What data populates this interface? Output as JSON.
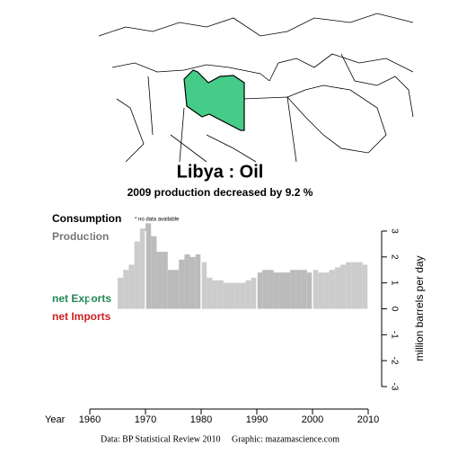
{
  "chart_data": {
    "type": "bar",
    "title": "Libya :  Oil",
    "subtitle": "2009 production decreased by 9.2 %",
    "annotation": "* no data available",
    "xlabel": "Year",
    "ylabel": "million barrels per day",
    "source": "Data: BP Statistical Review 2010     Graphic: mazamascience.com",
    "x": [
      1965,
      1966,
      1967,
      1968,
      1969,
      1970,
      1971,
      1972,
      1973,
      1974,
      1975,
      1976,
      1977,
      1978,
      1979,
      1980,
      1981,
      1982,
      1983,
      1984,
      1985,
      1986,
      1987,
      1988,
      1989,
      1990,
      1991,
      1992,
      1993,
      1994,
      1995,
      1996,
      1997,
      1998,
      1999,
      2000,
      2001,
      2002,
      2003,
      2004,
      2005,
      2006,
      2007,
      2008,
      2009
    ],
    "series": [
      {
        "name": "Production",
        "color": "#cccccc",
        "alt_color": "#bbbbbb",
        "label_color": "#777777",
        "values": [
          1.2,
          1.5,
          1.7,
          2.6,
          3.1,
          3.3,
          2.8,
          2.2,
          2.2,
          1.5,
          1.5,
          1.9,
          2.1,
          2.0,
          2.1,
          1.8,
          1.2,
          1.1,
          1.1,
          1.0,
          1.0,
          1.0,
          1.0,
          1.1,
          1.2,
          1.4,
          1.5,
          1.5,
          1.4,
          1.4,
          1.4,
          1.5,
          1.5,
          1.5,
          1.4,
          1.5,
          1.4,
          1.4,
          1.5,
          1.6,
          1.7,
          1.8,
          1.8,
          1.8,
          1.7
        ]
      }
    ],
    "legend": [
      {
        "name": "Consumption",
        "color": "#000000"
      },
      {
        "name": "net Exports",
        "color": "#228855"
      },
      {
        "name": "net Imports",
        "color": "#cc2222"
      }
    ],
    "xlim": [
      1960,
      2010
    ],
    "xticks": [
      1960,
      1970,
      1980,
      1990,
      2000,
      2010
    ],
    "ylim": [
      -3,
      3
    ],
    "yticks": [
      -3,
      -2,
      -1,
      0,
      1,
      2,
      3
    ]
  }
}
